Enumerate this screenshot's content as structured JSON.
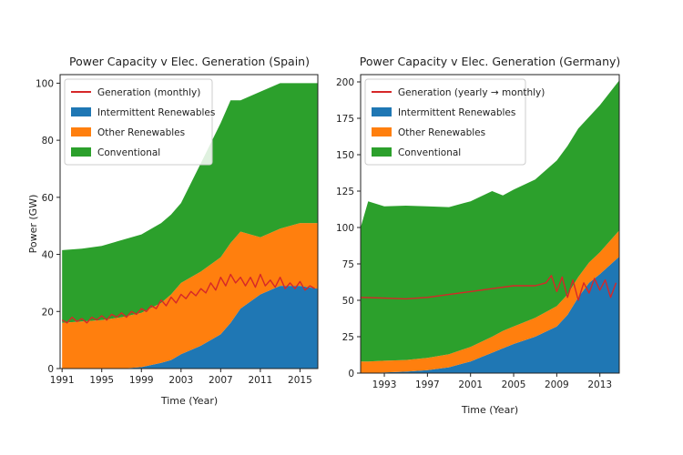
{
  "chart_data": [
    {
      "type": "area",
      "title": "Power Capacity v Elec. Generation (Spain)",
      "xlabel": "Time (Year)",
      "ylabel": "Power (GW)",
      "xlim": [
        1990.8,
        2016.8
      ],
      "ylim": [
        0,
        103
      ],
      "xticks": [
        1991,
        1995,
        1999,
        2003,
        2007,
        2011,
        2015
      ],
      "yticks": [
        0,
        20,
        40,
        60,
        80,
        100
      ],
      "legend_position": "top-left",
      "x": [
        1991,
        1993,
        1995,
        1997,
        1999,
        2001,
        2002,
        2003,
        2005,
        2007,
        2008,
        2009,
        2011,
        2013,
        2015,
        2016.8
      ],
      "series": [
        {
          "name": "Intermittent Renewables",
          "color": "#1f77b4",
          "values": [
            0,
            0,
            0,
            0,
            0.5,
            2,
            3,
            5,
            8,
            12,
            16,
            21,
            26,
            29,
            29,
            28
          ]
        },
        {
          "name": "Other Renewables",
          "color": "#ff7f0e",
          "values": [
            16,
            16.5,
            17,
            18,
            19,
            21,
            23,
            25,
            26,
            27,
            28,
            27,
            20,
            20,
            22,
            23
          ]
        },
        {
          "name": "Conventional",
          "color": "#2ca02c",
          "values": [
            25.5,
            25.5,
            26,
            27,
            27.5,
            28,
            28,
            28,
            38,
            47,
            50,
            46,
            51,
            51,
            49,
            49
          ]
        }
      ],
      "line": {
        "name": "Generation (monthly)",
        "color": "#d62728",
        "x": [
          1991,
          1991.5,
          1992,
          1992.5,
          1993,
          1993.5,
          1994,
          1994.5,
          1995,
          1995.5,
          1996,
          1996.5,
          1997,
          1997.5,
          1998,
          1998.5,
          1999,
          1999.5,
          2000,
          2000.5,
          2001,
          2001.5,
          2002,
          2002.5,
          2003,
          2003.5,
          2004,
          2004.5,
          2005,
          2005.5,
          2006,
          2006.5,
          2007,
          2007.5,
          2008,
          2008.5,
          2009,
          2009.5,
          2010,
          2010.5,
          2011,
          2011.5,
          2012,
          2012.5,
          2013,
          2013.5,
          2014,
          2014.5,
          2015,
          2015.5,
          2016,
          2016.5
        ],
        "values": [
          17,
          16,
          18,
          16.5,
          17.5,
          16,
          18,
          17,
          18.5,
          17,
          19,
          18,
          19.5,
          18,
          20,
          19,
          21,
          20,
          22,
          21,
          24,
          22,
          25,
          23,
          26,
          24.5,
          27,
          25.5,
          28,
          26.5,
          30,
          27.5,
          32,
          29,
          33,
          30,
          32,
          29,
          32,
          28.5,
          33,
          29,
          31,
          28.5,
          32,
          28,
          30,
          28,
          30.5,
          27.5,
          29,
          28
        ]
      }
    },
    {
      "type": "area",
      "title": "Power Capacity v Elec. Generation (Germany)",
      "xlabel": "Time (Year)",
      "ylabel": "",
      "xlim": [
        1990.8,
        2014.8
      ],
      "ylim": [
        0,
        205
      ],
      "xticks": [
        1993,
        1997,
        2001,
        2005,
        2009,
        2013
      ],
      "yticks": [
        0,
        25,
        50,
        75,
        100,
        125,
        150,
        175,
        200
      ],
      "legend_position": "top-left",
      "x": [
        1990.8,
        1991.5,
        1993,
        1995,
        1997,
        1999,
        2001,
        2002,
        2003,
        2004,
        2005,
        2007,
        2009,
        2010,
        2011,
        2012,
        2013,
        2014.8
      ],
      "series": [
        {
          "name": "Intermittent Renewables",
          "color": "#1f77b4",
          "values": [
            0,
            0,
            0.5,
            1,
            2,
            4,
            8,
            11,
            14,
            17,
            20,
            25,
            32,
            40,
            52,
            62,
            68,
            80
          ]
        },
        {
          "name": "Other Renewables",
          "color": "#ff7f0e",
          "values": [
            8,
            8,
            8,
            8,
            8.5,
            9,
            10,
            10.5,
            11,
            12,
            12,
            13,
            14,
            14,
            14,
            14,
            15,
            18
          ]
        },
        {
          "name": "Conventional",
          "color": "#2ca02c",
          "values": [
            92,
            110,
            106,
            106,
            104,
            101,
            100,
            100,
            100,
            93,
            94,
            95,
            100,
            102,
            102,
            100,
            101,
            103
          ]
        }
      ],
      "line": {
        "name": "Generation (yearly → monthly)",
        "color": "#d62728",
        "x": [
          1990.8,
          1993,
          1995,
          1997,
          1999,
          2001,
          2003,
          2005,
          2007,
          2008,
          2008.5,
          2009,
          2009.5,
          2010,
          2010.5,
          2011,
          2011.5,
          2012,
          2012.5,
          2013,
          2013.5,
          2014,
          2014.5
        ],
        "values": [
          52,
          51.5,
          51,
          52,
          54,
          56,
          58,
          60,
          60,
          62,
          67,
          56,
          66,
          52,
          64,
          50,
          62,
          55,
          65,
          57,
          64,
          52,
          62
        ]
      }
    }
  ]
}
